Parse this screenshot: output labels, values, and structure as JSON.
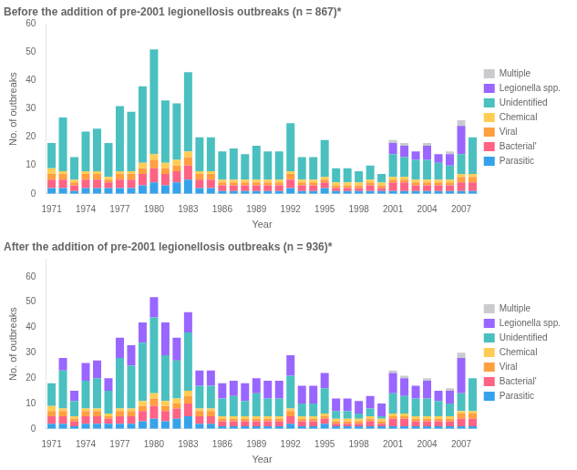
{
  "chart_data": [
    {
      "type": "bar",
      "stacked": true,
      "grid": false,
      "legend": "right",
      "title": "Before the addition of pre-2001 legionellosis outbreaks (n = 867)*",
      "xlabel": "Year",
      "ylabel": "No. of outbreaks",
      "categories": [
        "1971",
        null,
        null,
        "1974",
        null,
        null,
        "1977",
        null,
        null,
        "1980",
        null,
        null,
        "1983",
        null,
        null,
        "1986",
        null,
        null,
        "1989",
        null,
        null,
        "1992",
        null,
        null,
        "1995",
        null,
        null,
        "1998",
        null,
        null,
        "2001",
        null,
        null,
        "2004",
        null,
        null,
        "2007",
        null
      ],
      "ylim": [
        0,
        60
      ],
      "yticks": [
        0,
        10,
        20,
        30,
        40,
        50,
        60
      ],
      "series": [
        {
          "name": "Parasitic",
          "color": "#36a2eb",
          "values": [
            2,
            2,
            1,
            2,
            2,
            2,
            2,
            2,
            3,
            4,
            3,
            4,
            5,
            2,
            2,
            1,
            1,
            1,
            1,
            1,
            1,
            2,
            1,
            1,
            2,
            1,
            1,
            1,
            1,
            1,
            1,
            1,
            1,
            1,
            1,
            1,
            1,
            1
          ]
        },
        {
          "name": "Bacterial'",
          "color": "#ff6384",
          "values": [
            3,
            3,
            2,
            3,
            3,
            2,
            3,
            3,
            4,
            5,
            4,
            4,
            5,
            3,
            3,
            2,
            2,
            2,
            2,
            2,
            2,
            3,
            2,
            2,
            2,
            1,
            1,
            1,
            2,
            1,
            3,
            3,
            2,
            2,
            2,
            2,
            3,
            3
          ]
        },
        {
          "name": "Viral",
          "color": "#ff9f40",
          "values": [
            2,
            2,
            1,
            2,
            2,
            1,
            2,
            2,
            2,
            3,
            2,
            2,
            3,
            2,
            2,
            1,
            1,
            1,
            1,
            1,
            1,
            2,
            1,
            1,
            1,
            1,
            1,
            1,
            1,
            1,
            1,
            1,
            1,
            1,
            1,
            1,
            2,
            2
          ]
        },
        {
          "name": "Chemical",
          "color": "#ffcd56",
          "values": [
            2,
            1,
            1,
            1,
            1,
            1,
            1,
            1,
            2,
            2,
            2,
            2,
            2,
            1,
            1,
            1,
            1,
            1,
            1,
            1,
            1,
            1,
            1,
            1,
            1,
            1,
            1,
            1,
            1,
            1,
            1,
            1,
            1,
            1,
            1,
            1,
            1,
            1
          ]
        },
        {
          "name": "Unidentified",
          "color": "#4bc0c0",
          "values": [
            9,
            19,
            8,
            14,
            15,
            12,
            23,
            21,
            27,
            37,
            22,
            20,
            28,
            12,
            12,
            10,
            11,
            9,
            12,
            10,
            10,
            17,
            8,
            8,
            13,
            5,
            5,
            4,
            5,
            3,
            8,
            7,
            7,
            7,
            6,
            5,
            7,
            13
          ]
        },
        {
          "name": "Legionella spp.",
          "color": "#9966ff",
          "values": [
            0,
            0,
            0,
            0,
            0,
            0,
            0,
            0,
            0,
            0,
            0,
            0,
            0,
            0,
            0,
            0,
            0,
            0,
            0,
            0,
            0,
            0,
            0,
            0,
            0,
            0,
            0,
            0,
            0,
            0,
            4,
            4,
            3,
            5,
            3,
            4,
            10,
            0
          ]
        },
        {
          "name": "Multiple",
          "color": "#c9cbcf",
          "values": [
            0,
            0,
            0,
            0,
            0,
            0,
            0,
            0,
            0,
            0,
            0,
            0,
            0,
            0,
            0,
            0,
            0,
            0,
            0,
            0,
            0,
            0,
            0,
            0,
            0,
            0,
            0,
            0,
            0,
            0,
            1,
            1,
            0,
            1,
            0,
            1,
            2,
            0
          ]
        }
      ]
    },
    {
      "type": "bar",
      "stacked": true,
      "grid": false,
      "legend": "right",
      "title": "After the addition of pre-2001 legionellosis outbreaks (n = 936)*",
      "xlabel": "Year",
      "ylabel": "No. of outbreaks",
      "categories": [
        "1971",
        null,
        null,
        "1974",
        null,
        null,
        "1977",
        null,
        null,
        "1980",
        null,
        null,
        "1983",
        null,
        null,
        "1986",
        null,
        null,
        "1989",
        null,
        null,
        "1992",
        null,
        null,
        "1995",
        null,
        null,
        "1998",
        null,
        null,
        "2001",
        null,
        null,
        "2004",
        null,
        null,
        "2007",
        null
      ],
      "ylim": [
        0,
        67
      ],
      "yticks": [
        0,
        10,
        20,
        30,
        40,
        50,
        60
      ],
      "series": [
        {
          "name": "Parasitic",
          "color": "#36a2eb",
          "values": [
            2,
            2,
            1,
            2,
            2,
            2,
            2,
            2,
            3,
            4,
            3,
            4,
            5,
            2,
            2,
            1,
            1,
            1,
            1,
            1,
            1,
            2,
            1,
            1,
            2,
            1,
            1,
            1,
            1,
            1,
            1,
            1,
            1,
            1,
            1,
            1,
            1,
            1
          ]
        },
        {
          "name": "Bacterial'",
          "color": "#ff6384",
          "values": [
            3,
            3,
            2,
            3,
            3,
            2,
            3,
            3,
            4,
            5,
            4,
            4,
            5,
            3,
            3,
            2,
            2,
            2,
            2,
            2,
            2,
            3,
            2,
            2,
            2,
            1,
            1,
            1,
            2,
            1,
            3,
            3,
            2,
            2,
            2,
            2,
            3,
            3
          ]
        },
        {
          "name": "Viral",
          "color": "#ff9f40",
          "values": [
            2,
            2,
            1,
            2,
            2,
            1,
            2,
            2,
            2,
            3,
            2,
            2,
            3,
            2,
            2,
            1,
            1,
            1,
            1,
            1,
            1,
            2,
            1,
            1,
            1,
            1,
            1,
            1,
            1,
            1,
            1,
            1,
            1,
            1,
            1,
            1,
            2,
            2
          ]
        },
        {
          "name": "Chemical",
          "color": "#ffcd56",
          "values": [
            2,
            1,
            1,
            1,
            1,
            1,
            1,
            1,
            2,
            2,
            2,
            2,
            2,
            1,
            1,
            1,
            1,
            1,
            1,
            1,
            1,
            1,
            1,
            1,
            1,
            1,
            1,
            1,
            1,
            1,
            1,
            1,
            1,
            1,
            1,
            1,
            1,
            1
          ]
        },
        {
          "name": "Unidentified",
          "color": "#4bc0c0",
          "values": [
            9,
            15,
            6,
            11,
            12,
            9,
            20,
            17,
            23,
            30,
            18,
            15,
            23,
            9,
            9,
            7,
            8,
            6,
            9,
            7,
            7,
            13,
            5,
            5,
            10,
            3,
            3,
            2,
            3,
            1,
            8,
            7,
            7,
            7,
            6,
            5,
            7,
            13
          ]
        },
        {
          "name": "Legionella spp.",
          "color": "#9966ff",
          "values": [
            0,
            5,
            4,
            7,
            7,
            5,
            8,
            8,
            8,
            8,
            13,
            9,
            8,
            6,
            6,
            6,
            6,
            7,
            6,
            7,
            7,
            8,
            7,
            7,
            6,
            5,
            5,
            5,
            5,
            5,
            8,
            7,
            5,
            7,
            4,
            5,
            14,
            0
          ]
        },
        {
          "name": "Multiple",
          "color": "#c9cbcf",
          "values": [
            0,
            0,
            0,
            0,
            0,
            0,
            0,
            0,
            0,
            0,
            0,
            0,
            0,
            0,
            0,
            0,
            0,
            0,
            0,
            0,
            0,
            0,
            0,
            0,
            0,
            0,
            0,
            0,
            0,
            0,
            1,
            1,
            0,
            1,
            0,
            1,
            2,
            0
          ]
        }
      ]
    }
  ]
}
